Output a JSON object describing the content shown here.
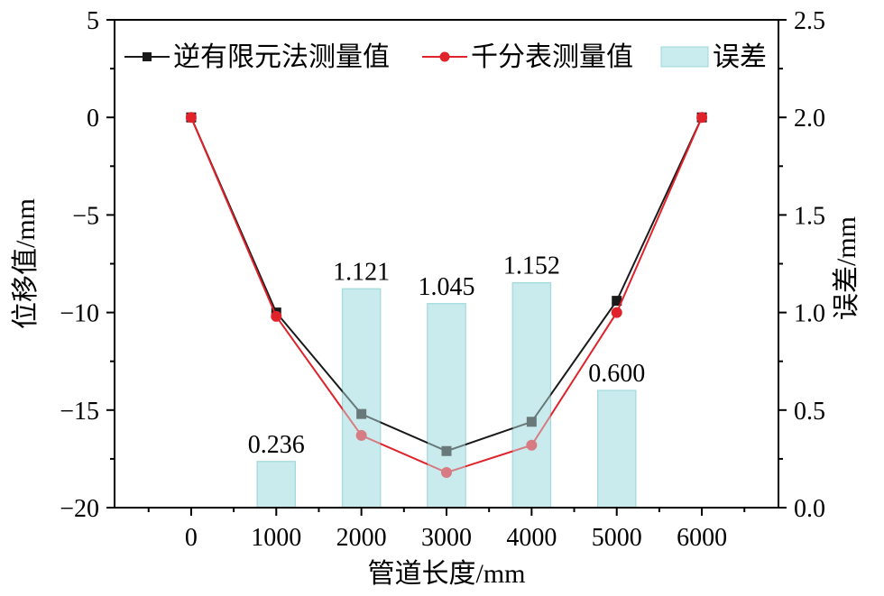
{
  "chart_data": {
    "type": "bar+line",
    "x_label": "管道长度/mm",
    "y_left_label": "位移值/mm",
    "y_right_label": "误差/mm",
    "x_ticks": [
      "0",
      "1000",
      "2000",
      "3000",
      "4000",
      "5000",
      "6000"
    ],
    "y_left_ticks": [
      "5",
      "0",
      "−5",
      "−10",
      "−15",
      "−20"
    ],
    "y_right_ticks": [
      "2.5",
      "2.0",
      "1.5",
      "1.0",
      "0.5",
      "0.0"
    ],
    "xlim": [
      -900,
      6900
    ],
    "y_left_lim": [
      -20,
      5
    ],
    "y_right_lim": [
      0,
      2.5
    ],
    "legend_position": "top",
    "series": [
      {
        "name": "逆有限元法测量值",
        "kind": "line",
        "axis": "left",
        "marker": "square",
        "color": "#1a1a1a",
        "x": [
          0,
          1000,
          2000,
          3000,
          4000,
          5000,
          6000
        ],
        "y": [
          0,
          -10.0,
          -15.2,
          -17.1,
          -15.6,
          -9.4,
          0
        ]
      },
      {
        "name": "千分表测量值",
        "kind": "line",
        "axis": "left",
        "marker": "circle",
        "color": "#e0222a",
        "x": [
          0,
          1000,
          2000,
          3000,
          4000,
          5000,
          6000
        ],
        "y": [
          0,
          -10.2,
          -16.3,
          -18.2,
          -16.8,
          -10.0,
          0
        ]
      },
      {
        "name": "误差",
        "kind": "bar",
        "axis": "right",
        "color": "#c9ecee",
        "edge_color": "#9fd8db",
        "x": [
          1000,
          2000,
          3000,
          4000,
          5000
        ],
        "y": [
          0.236,
          1.121,
          1.045,
          1.152,
          0.6
        ],
        "labels": [
          "0.236",
          "1.121",
          "1.045",
          "1.152",
          "0.600"
        ]
      }
    ]
  }
}
